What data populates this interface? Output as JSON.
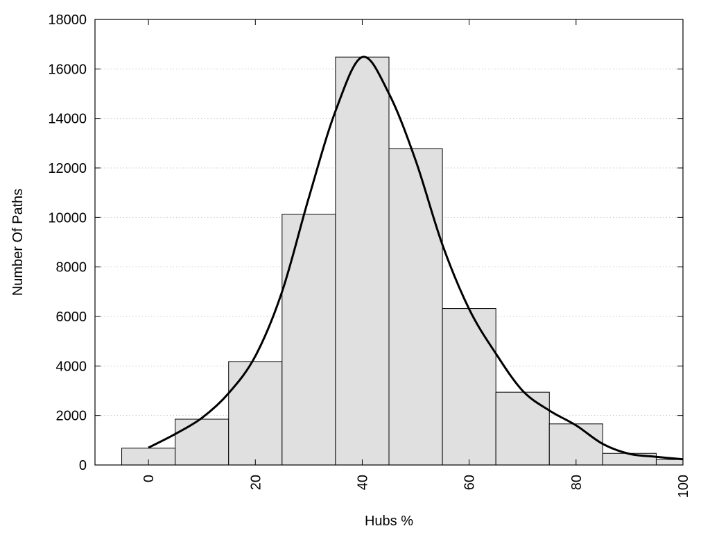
{
  "chart_data": {
    "type": "bar",
    "title": "",
    "xlabel": "Hubs %",
    "ylabel": "Number Of Paths",
    "xlim": [
      -10,
      100
    ],
    "ylim": [
      0,
      18000
    ],
    "bin_width": 10,
    "x_ticks": [
      0,
      20,
      40,
      60,
      80,
      100
    ],
    "y_ticks": [
      0,
      2000,
      4000,
      6000,
      8000,
      10000,
      12000,
      14000,
      16000,
      18000
    ],
    "grid": "horizontal dotted",
    "legend": "none",
    "bars": [
      {
        "center": 0,
        "value": 680
      },
      {
        "center": 10,
        "value": 1850
      },
      {
        "center": 20,
        "value": 4180
      },
      {
        "center": 30,
        "value": 10130
      },
      {
        "center": 40,
        "value": 16480
      },
      {
        "center": 50,
        "value": 12780
      },
      {
        "center": 60,
        "value": 6320
      },
      {
        "center": 70,
        "value": 2940
      },
      {
        "center": 80,
        "value": 1660
      },
      {
        "center": 90,
        "value": 470
      },
      {
        "center": 100,
        "value": 220
      }
    ],
    "density_curve": {
      "x": [
        0,
        5,
        10,
        15,
        20,
        25,
        30,
        35,
        40,
        45,
        50,
        55,
        60,
        65,
        70,
        75,
        80,
        85,
        90,
        95,
        100
      ],
      "y": [
        700,
        1250,
        1900,
        2900,
        4400,
        7000,
        10800,
        14300,
        16480,
        15000,
        12300,
        8900,
        6300,
        4500,
        3000,
        2200,
        1600,
        850,
        450,
        330,
        230
      ]
    },
    "colors": {
      "bar_fill": "#e0e0e0",
      "bar_stroke": "#000000",
      "curve": "#000000",
      "grid": "#c8c8c8"
    }
  }
}
